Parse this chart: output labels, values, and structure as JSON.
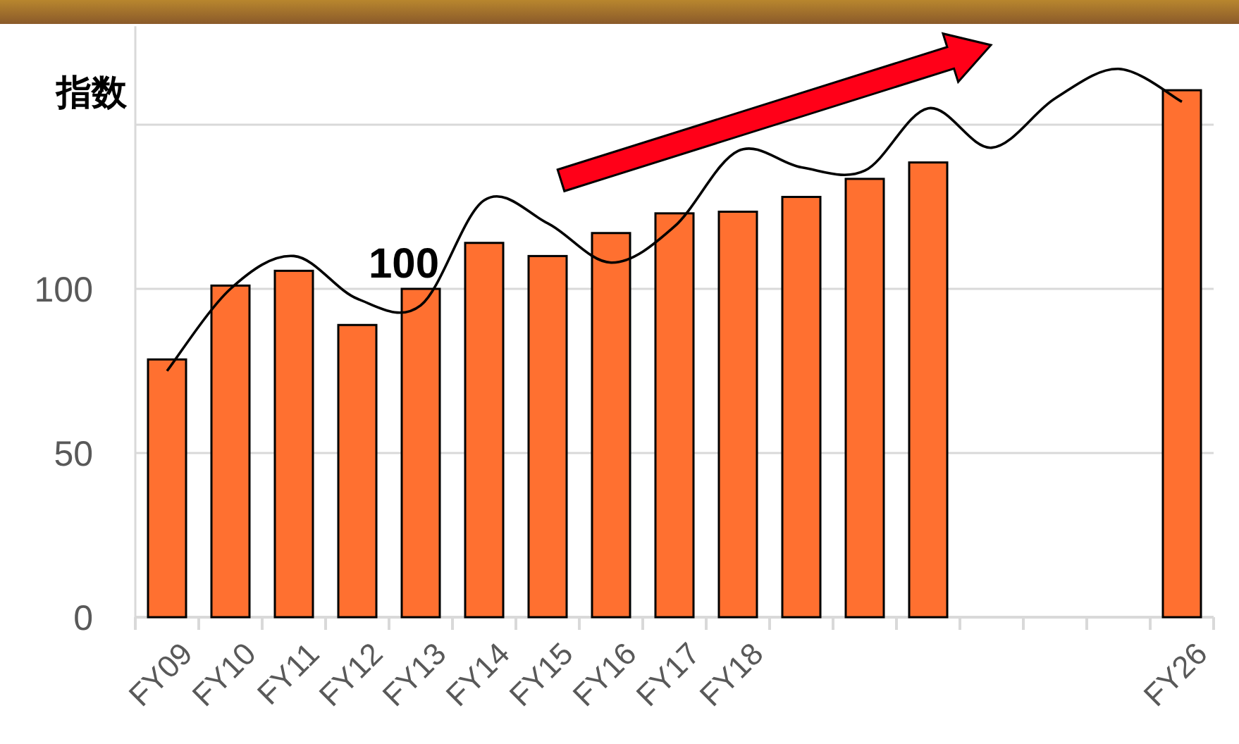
{
  "chart_data": {
    "type": "bar",
    "ylabel": "指数",
    "categories": [
      "FY09",
      "FY10",
      "FY11",
      "FY12",
      "FY13",
      "FY14",
      "FY15",
      "FY16",
      "FY17",
      "FY18",
      null,
      null,
      null,
      null,
      null,
      null,
      "FY26"
    ],
    "series": [
      {
        "color": "#ff7030",
        "values": [
          78.5,
          101,
          105.5,
          89,
          100,
          114,
          110,
          117,
          123,
          123.5,
          128,
          133.5,
          138.5,
          null,
          null,
          null,
          160.5
        ],
        "value_labels": [
          null,
          null,
          null,
          null,
          "100",
          null,
          null,
          null,
          null,
          null,
          null,
          null,
          null,
          null,
          null,
          null,
          null
        ]
      },
      {
        "type": "line",
        "color": "#000000",
        "values": [
          75,
          100,
          110,
          97,
          95,
          127,
          120,
          108,
          119,
          142,
          137,
          136,
          155,
          143,
          158,
          167,
          157
        ]
      }
    ],
    "ylim": [
      0,
      180
    ],
    "yticks": [
      0,
      50,
      100,
      {
        "value": 150,
        "label": null
      }
    ],
    "grid": "y"
  }
}
